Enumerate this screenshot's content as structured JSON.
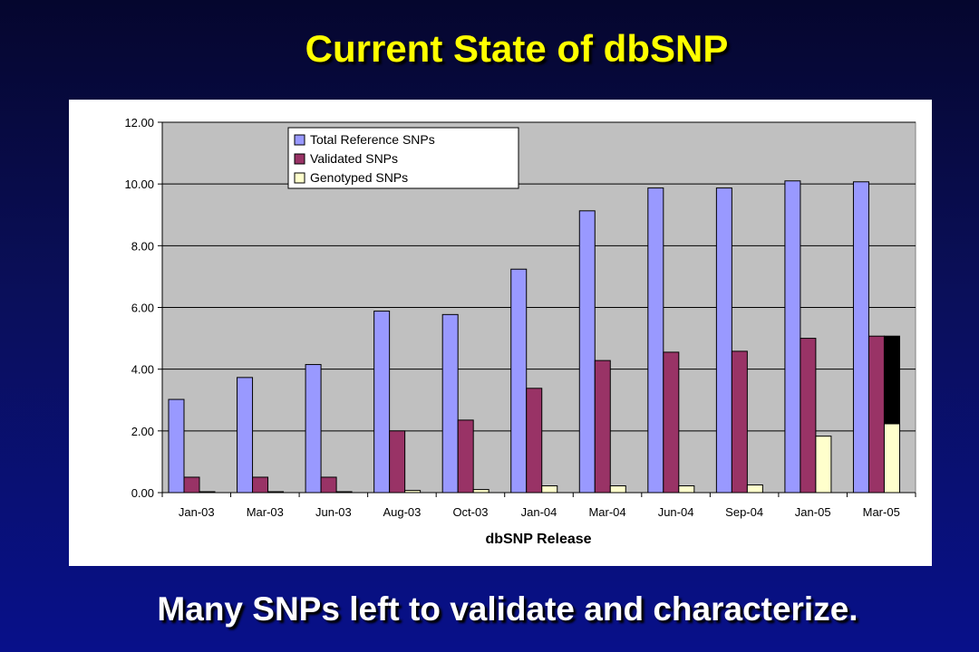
{
  "slide": {
    "title": "Current State of dbSNP",
    "subtitle": "Many SNPs left to validate and characterize."
  },
  "chart_data": {
    "type": "bar",
    "title": "",
    "xlabel": "dbSNP Release",
    "ylabel": "",
    "ylim": [
      0,
      12
    ],
    "yticks": [
      "0.00",
      "2.00",
      "4.00",
      "6.00",
      "8.00",
      "10.00",
      "12.00"
    ],
    "grid": true,
    "legend_position": "top-left",
    "categories": [
      "Jan-03",
      "Mar-03",
      "Jun-03",
      "Aug-03",
      "Oct-03",
      "Jan-04",
      "Mar-04",
      "Jun-04",
      "Sep-04",
      "Jan-05",
      "Mar-05"
    ],
    "series": [
      {
        "name": "Total Reference SNPs",
        "color": "#9999ff",
        "values": [
          3.02,
          3.73,
          4.15,
          5.88,
          5.77,
          7.24,
          9.13,
          9.87,
          9.87,
          10.1,
          10.07
        ]
      },
      {
        "name": "Validated SNPs",
        "color": "#993366",
        "values": [
          0.5,
          0.5,
          0.5,
          2.0,
          2.35,
          3.38,
          4.28,
          4.55,
          4.58,
          5.0,
          5.07
        ]
      },
      {
        "name": "Genotyped SNPs",
        "color": "#ffffcc",
        "values": [
          0.03,
          0.03,
          0.03,
          0.07,
          0.1,
          0.22,
          0.22,
          0.22,
          0.25,
          1.83,
          2.23
        ]
      }
    ],
    "highlight": {
      "category": "Mar-05",
      "series": "Genotyped SNPs",
      "filled_to": 5.07,
      "color": "#000000"
    },
    "plot_background": "#c0c0c0"
  }
}
